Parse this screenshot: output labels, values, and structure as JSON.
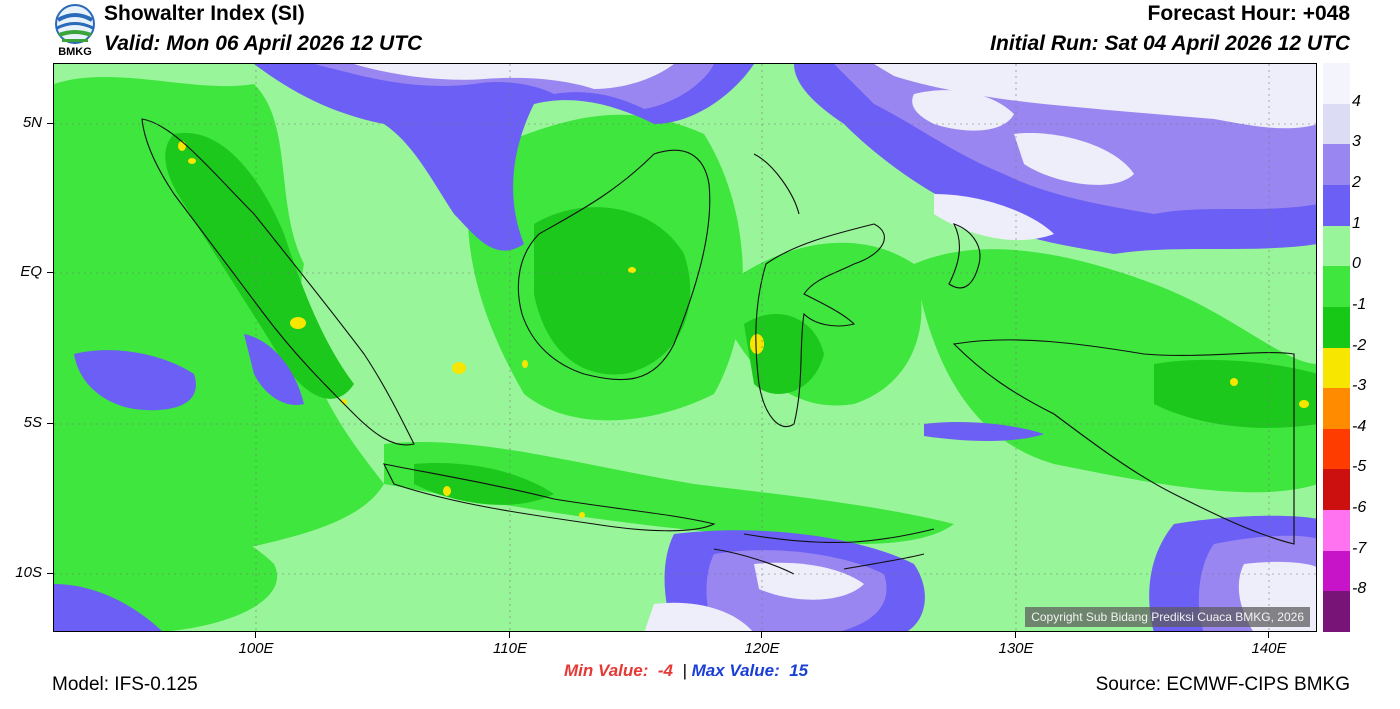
{
  "header": {
    "logo_text": "BMKG",
    "title": "Showalter Index (SI)",
    "valid": "Valid: Mon 06 April 2026 12 UTC",
    "forecast_hour": "Forecast Hour: +048",
    "initial_run": "Initial Run: Sat 04 April 2026 12 UTC"
  },
  "map": {
    "lat_labels": [
      "5N",
      "EQ",
      "5S",
      "10S"
    ],
    "lon_labels": [
      "100E",
      "110E",
      "120E",
      "130E",
      "140E"
    ],
    "copyright": "Copyright Sub Bidang Prediksi Cuaca BMKG, 2026",
    "fill_colors": {
      "light_green": "#99f599",
      "mid_green": "#3ee63e",
      "dark_green": "#1bc81b",
      "blue_violet": "#6b5ff5",
      "lavender": "#9a86f0",
      "pale_violet": "#eeeefa",
      "yellow": "#f7e600"
    }
  },
  "legend": {
    "labels": [
      "4",
      "3",
      "2",
      "1",
      "0",
      "-1",
      "-2",
      "-3",
      "-4",
      "-5",
      "-6",
      "-7",
      "-8"
    ],
    "colors": [
      "#f4f4fc",
      "#dcdcf5",
      "#9a86f0",
      "#6b5ff5",
      "#99f599",
      "#3ee63e",
      "#17c817",
      "#f7e600",
      "#ff8c00",
      "#ff3c00",
      "#cc0f0f",
      "#ff73f0",
      "#c814c8",
      "#781478"
    ]
  },
  "footer": {
    "model": "Model: IFS-0.125",
    "min_value": "Min Value:  -4",
    "separator": "|",
    "max_value": "Max Value:  15",
    "source": "Source: ECMWF-CIPS BMKG"
  }
}
